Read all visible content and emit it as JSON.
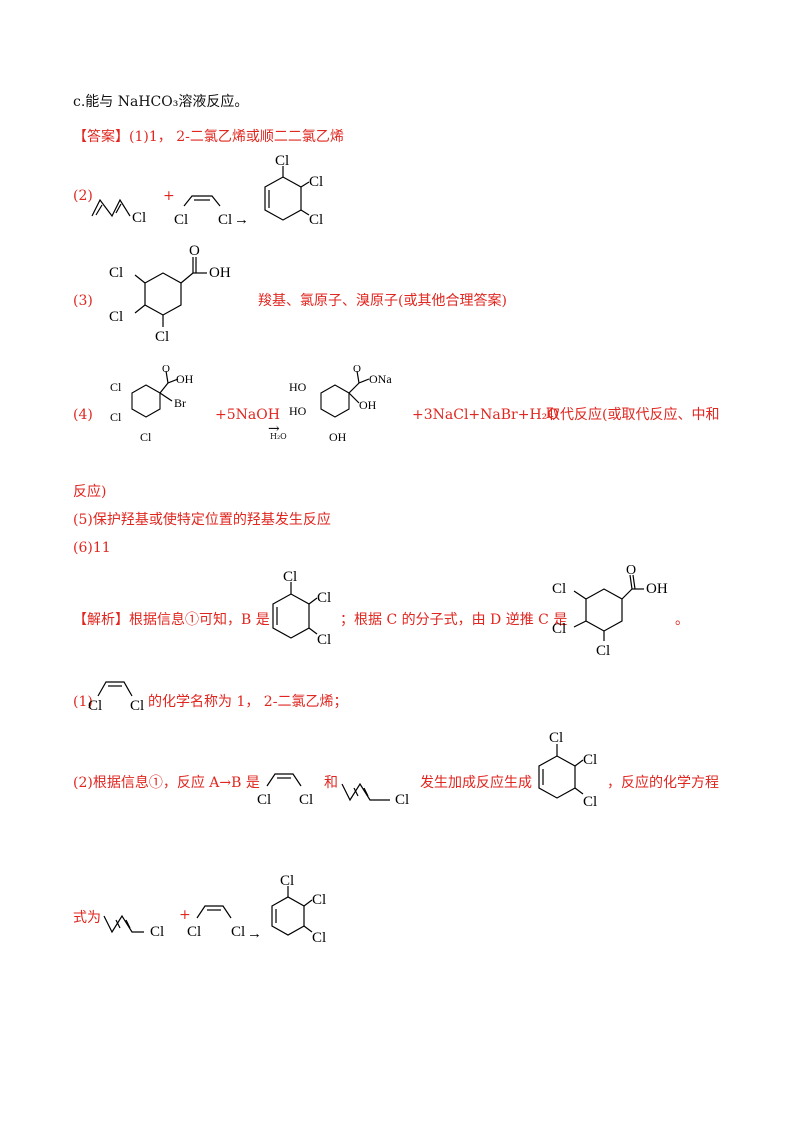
{
  "line_c": "c.能与 NaHCO₃溶液反应。",
  "answer": {
    "tag": "【答案】",
    "a1": "(1)1， 2-二氯乙烯或顺二二氯乙烯",
    "a2_label": "(2)",
    "a3_label": "(3)",
    "a3_text": "羧基、氯原子、溴原子(或其他合理答案)",
    "a4_label": "(4)",
    "a4_naoh": "+5NaOH",
    "a4_condition": "H₂O",
    "a4_products": "+3NaCl+NaBr+H₂O",
    "a4_type": "取代反应(或取代反应、中和",
    "a4_type_cont": "反应)",
    "a5": "(5)保护羟基或使特定位置的羟基发生反应",
    "a6": "(6)11"
  },
  "analysis": {
    "tag": "【解析】",
    "p1_a": "根据信息①可知，B 是",
    "p1_b": "；根据 C 的分子式，由 D 逆推 C 是",
    "p1_end": "。",
    "s1_label": "(1)",
    "s1_text": "的化学名称为 1， 2-二氯乙烯；",
    "s2_a": "(2)根据信息①，反应 A→B 是",
    "s2_and": "和",
    "s2_b": "发生加成反应生成",
    "s2_c": "，反应的化学方程",
    "s2_d": "式为"
  },
  "chem": {
    "plus": "+",
    "cl": "Cl",
    "br": "Br",
    "oh": "OH",
    "ho": "HO",
    "ona": "ONa",
    "arrow": "→"
  }
}
